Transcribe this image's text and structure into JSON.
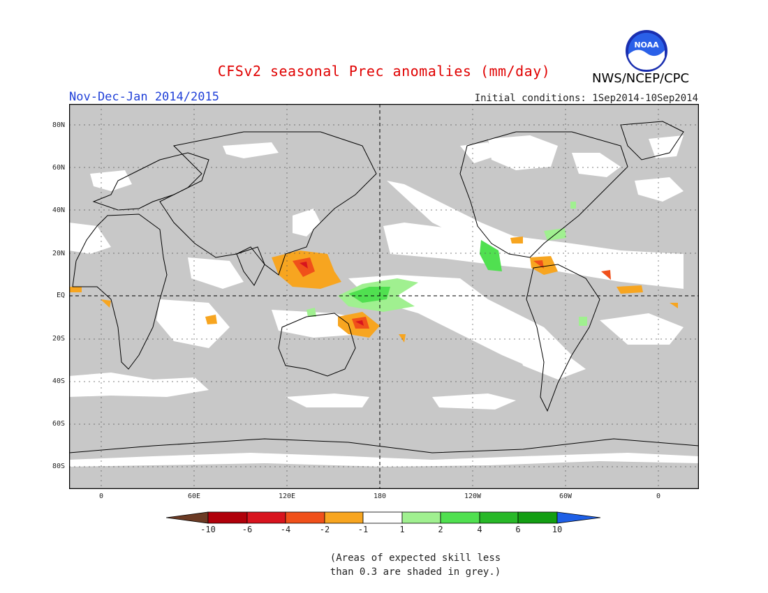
{
  "title": "CFSv2 seasonal Prec anomalies (mm/day)",
  "season_label": "Nov-Dec-Jan 2014/2015",
  "initial_conditions": "Initial conditions: 1Sep2014-10Sep2014",
  "agency": "NWS/NCEP/CPC",
  "logo_text": "NOAA",
  "lat_labels": [
    "80N",
    "60N",
    "40N",
    "20N",
    "EQ",
    "20S",
    "40S",
    "60S",
    "80S"
  ],
  "lon_labels": [
    "0",
    "60E",
    "120E",
    "180",
    "120W",
    "60W",
    "0"
  ],
  "colorbar": {
    "labels": [
      "-10",
      "-6",
      "-4",
      "-2",
      "-1",
      "1",
      "2",
      "4",
      "6",
      "10"
    ],
    "colors": [
      "#6b3a24",
      "#b0000a",
      "#d8141e",
      "#f0501a",
      "#f7a520",
      "#ffffff",
      "#a0f090",
      "#50e050",
      "#28b828",
      "#139e13",
      "#1e5fe6"
    ]
  },
  "note_line1": "(Areas of expected skill less",
  "note_line2": "than 0.3 are shaded in grey.)",
  "colors": {
    "skill_grey": "#c8c8c8",
    "title_red": "#e00000",
    "season_blue": "#2040d8"
  }
}
